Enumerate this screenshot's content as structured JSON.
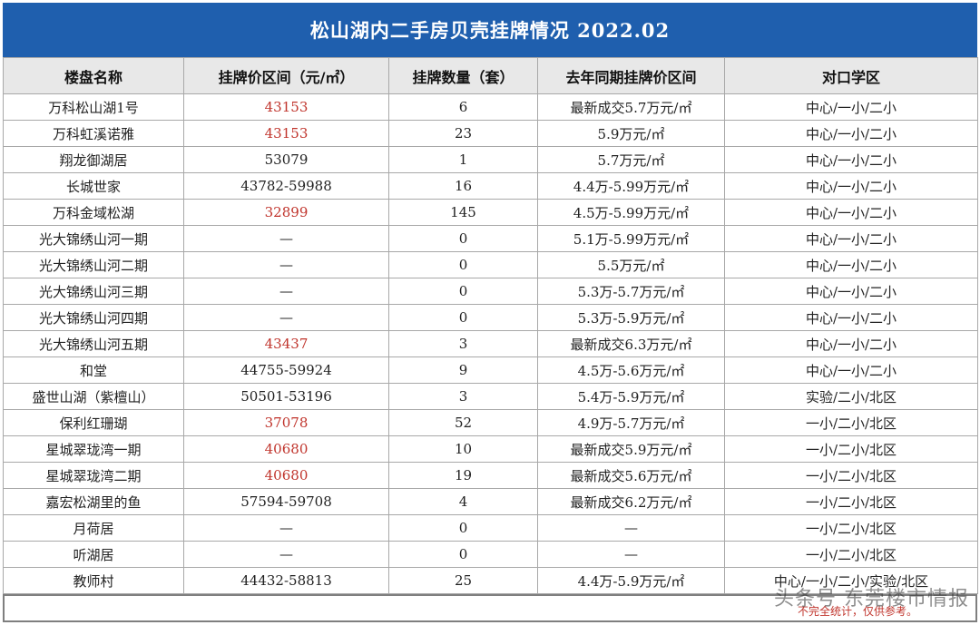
{
  "title": "松山湖内二手房贝壳挂牌情况 2022.02",
  "headers": [
    "楼盘名称",
    "挂牌价区间（元/㎡）",
    "挂牌数量（套）",
    "去年同期挂牌价区间",
    "对口学区"
  ],
  "colors": {
    "title_bg": "#1f5fae",
    "highlight": "#c0342c",
    "header_bg": "#e8e8e8"
  },
  "rows": [
    {
      "name": "万科松山湖1号",
      "price": "43153",
      "price_highlight": true,
      "count": "6",
      "last_year": "最新成交5.7万元/㎡",
      "school": "中心/一小/二小"
    },
    {
      "name": "万科虹溪诺雅",
      "price": "43153",
      "price_highlight": true,
      "count": "23",
      "last_year": "5.9万元/㎡",
      "school": "中心/一小/二小"
    },
    {
      "name": "翔龙御湖居",
      "price": "53079",
      "price_highlight": false,
      "count": "1",
      "last_year": "5.7万元/㎡",
      "school": "中心/一小/二小"
    },
    {
      "name": "长城世家",
      "price": "43782-59988",
      "price_highlight": false,
      "count": "16",
      "last_year": "4.4万-5.99万元/㎡",
      "school": "中心/一小/二小"
    },
    {
      "name": "万科金域松湖",
      "price": "32899",
      "price_highlight": true,
      "count": "145",
      "last_year": "4.5万-5.99万元/㎡",
      "school": "中心/一小/二小"
    },
    {
      "name": "光大锦绣山河一期",
      "price": "—",
      "price_highlight": false,
      "count": "0",
      "last_year": "5.1万-5.99万元/㎡",
      "school": "中心/一小/二小"
    },
    {
      "name": "光大锦绣山河二期",
      "price": "—",
      "price_highlight": false,
      "count": "0",
      "last_year": "5.5万元/㎡",
      "school": "中心/一小/二小"
    },
    {
      "name": "光大锦绣山河三期",
      "price": "—",
      "price_highlight": false,
      "count": "0",
      "last_year": "5.3万-5.7万元/㎡",
      "school": "中心/一小/二小"
    },
    {
      "name": "光大锦绣山河四期",
      "price": "—",
      "price_highlight": false,
      "count": "0",
      "last_year": "5.3万-5.9万元/㎡",
      "school": "中心/一小/二小"
    },
    {
      "name": "光大锦绣山河五期",
      "price": "43437",
      "price_highlight": true,
      "count": "3",
      "last_year": "最新成交6.3万元/㎡",
      "school": "中心/一小/二小"
    },
    {
      "name": "和堂",
      "price": "44755-59924",
      "price_highlight": false,
      "count": "9",
      "last_year": "4.5万-5.6万元/㎡",
      "school": "中心/一小/二小"
    },
    {
      "name": "盛世山湖（紫檀山）",
      "price": "50501-53196",
      "price_highlight": false,
      "count": "3",
      "last_year": "5.4万-5.9万元/㎡",
      "school": "实验/二小/北区"
    },
    {
      "name": "保利红珊瑚",
      "price": "37078",
      "price_highlight": true,
      "count": "52",
      "last_year": "4.9万-5.7万元/㎡",
      "school": "一小/二小/北区"
    },
    {
      "name": "星城翠珑湾一期",
      "price": "40680",
      "price_highlight": true,
      "count": "10",
      "last_year": "最新成交5.9万元/㎡",
      "school": "一小/二小/北区"
    },
    {
      "name": "星城翠珑湾二期",
      "price": "40680",
      "price_highlight": true,
      "count": "19",
      "last_year": "最新成交5.6万元/㎡",
      "school": "一小/二小/北区"
    },
    {
      "name": "嘉宏松湖里的鱼",
      "price": "57594-59708",
      "price_highlight": false,
      "count": "4",
      "last_year": "最新成交6.2万元/㎡",
      "school": "一小/二小/北区"
    },
    {
      "name": "月荷居",
      "price": "—",
      "price_highlight": false,
      "count": "0",
      "last_year": "—",
      "school": "一小/二小/北区"
    },
    {
      "name": "听湖居",
      "price": "—",
      "price_highlight": false,
      "count": "0",
      "last_year": "—",
      "school": "一小/二小/北区"
    },
    {
      "name": "教师村",
      "price": "44432-58813",
      "price_highlight": false,
      "count": "25",
      "last_year": "4.4万-5.9万元/㎡",
      "school": "中心/一小/二小/实验/北区"
    }
  ],
  "footer_note": "不完全统计，仅供参考。",
  "watermark": "头条号 东莞楼市情报"
}
